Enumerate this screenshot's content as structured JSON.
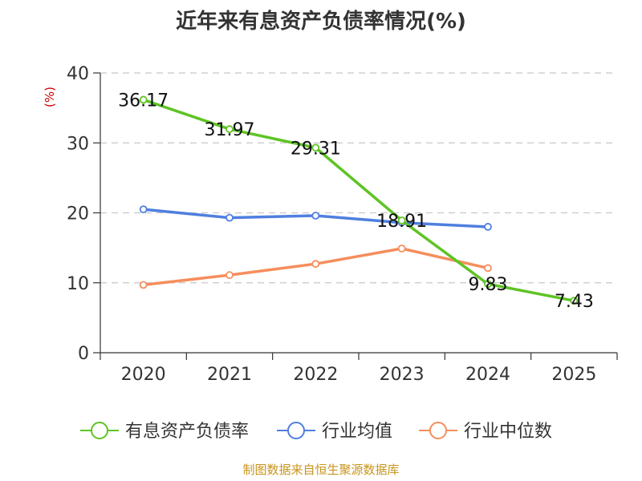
{
  "chart_data": {
    "type": "line",
    "title": "近年来有息资产负债率情况(%)",
    "ylabel": "(%)",
    "ylim": [
      0,
      40
    ],
    "yticks": [
      0,
      10,
      20,
      30,
      40
    ],
    "categories": [
      "2020",
      "2021",
      "2022",
      "2023",
      "2024",
      "2025"
    ],
    "series": [
      {
        "name": "有息资产负债率",
        "color": "#5ec424",
        "values": [
          36.17,
          31.97,
          29.31,
          18.91,
          9.83,
          7.43
        ],
        "labels": [
          "36.17",
          "31.97",
          "29.31",
          "18.91",
          "9.83",
          "7.43"
        ]
      },
      {
        "name": "行业均值",
        "color": "#4f7fdf",
        "values": [
          20.5,
          19.3,
          19.6,
          18.6,
          18.0,
          null
        ]
      },
      {
        "name": "行业中位数",
        "color": "#f58e5c",
        "values": [
          9.7,
          11.1,
          12.7,
          14.9,
          12.1,
          null
        ]
      }
    ],
    "grid": true,
    "legend_position": "bottom"
  },
  "footer": "制图数据来自恒生聚源数据库"
}
